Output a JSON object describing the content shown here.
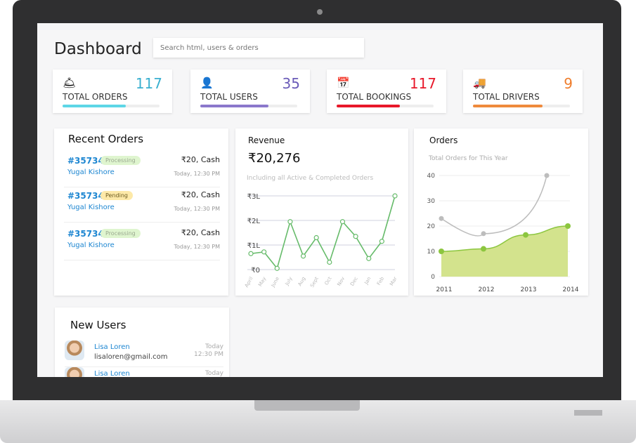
{
  "header": {
    "title": "Dashboard",
    "search_placeholder": "Search html, users & orders"
  },
  "stats": [
    {
      "icon": "service-bell-icon",
      "glyph": "🛎",
      "value": "117",
      "label": "TOTAL ORDERS",
      "color": "#3ab0d0",
      "bar": "#5dd6e6",
      "progress": 65
    },
    {
      "icon": "user-icon",
      "glyph": "👤",
      "value": "35",
      "label": "TOTAL USERS",
      "color": "#6a5bb8",
      "bar": "#8b78cc",
      "progress": 70
    },
    {
      "icon": "calendar-icon",
      "glyph": "📅",
      "value": "117",
      "label": "TOTAL BOOKINGS",
      "color": "#e8182a",
      "bar": "#e8182a",
      "progress": 65
    },
    {
      "icon": "truck-icon",
      "glyph": "🚚",
      "value": "9",
      "label": "TOTAL DRIVERS",
      "color": "#ef7d2c",
      "bar": "#ef8a3c",
      "progress": 72
    }
  ],
  "recent_orders": {
    "title": "Recent Orders",
    "items": [
      {
        "id": "#35734",
        "status": "Processing",
        "amount": "₹20, Cash",
        "customer": "Yugal Kishore",
        "time": "Today, 12:30 PM"
      },
      {
        "id": "#35734",
        "status": "Pending",
        "amount": "₹20, Cash",
        "customer": "Yugal Kishore",
        "time": "Today, 12:30 PM"
      },
      {
        "id": "#35734",
        "status": "Processing",
        "amount": "₹20, Cash",
        "customer": "Yugal Kishore",
        "time": "Today, 12:30 PM"
      }
    ]
  },
  "new_users": {
    "title": "New Users",
    "items": [
      {
        "name": "Lisa Loren",
        "email": "lisaloren@gmail.com",
        "date": "Today",
        "time": "12:30 PM"
      },
      {
        "name": "Lisa Loren",
        "email": "",
        "date": "Today",
        "time": ""
      }
    ]
  },
  "chart_data": [
    {
      "type": "line",
      "title": "Revenue",
      "value": "₹20,276",
      "subtitle": "Including all Active & Completed Orders",
      "categories": [
        "April",
        "May",
        "June",
        "July",
        "Aug",
        "Sept",
        "Oct",
        "Nov",
        "Dec",
        "Jan",
        "Feb",
        "Mar"
      ],
      "values": [
        0.65,
        0.72,
        0.05,
        1.95,
        0.55,
        1.3,
        0.3,
        1.95,
        1.35,
        0.45,
        1.15,
        3.0
      ],
      "unit": "lakh ₹",
      "yticks": [
        "₹0",
        "₹1L",
        "₹2L",
        "₹3L"
      ],
      "ylim": [
        0,
        3
      ],
      "color": "#66bb6a",
      "grid": true
    },
    {
      "type": "area",
      "title": "Orders",
      "subtitle": "Total Orders for This Year",
      "xticks": [
        "2011",
        "2012",
        "2013",
        "2014"
      ],
      "yticks": [
        "0",
        "10",
        "20",
        "30",
        "40"
      ],
      "ylim": [
        0,
        40
      ],
      "grid": true,
      "series": [
        {
          "x": [
            2011,
            2012,
            2013,
            2014
          ],
          "values": [
            10,
            11,
            16.5,
            20
          ],
          "color": "#8cc63f",
          "type": "area"
        },
        {
          "x": [
            2011,
            2012,
            2013.5
          ],
          "values": [
            23,
            17,
            40
          ],
          "color": "#bdbdbd",
          "type": "line"
        }
      ]
    }
  ]
}
